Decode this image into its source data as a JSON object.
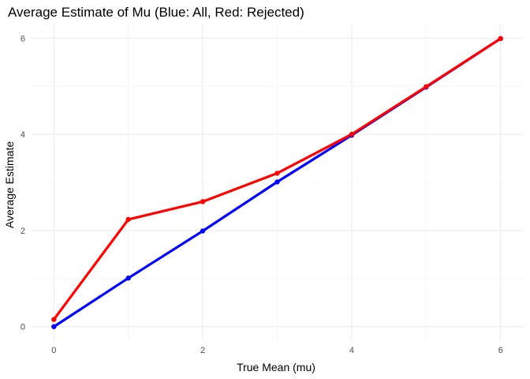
{
  "chart_data": {
    "type": "line",
    "title": "Average Estimate of Mu (Blue: All, Red: Rejected)",
    "xlabel": "True Mean (mu)",
    "ylabel": "Average Estimate",
    "x": [
      0,
      1,
      2,
      3,
      4,
      5,
      6
    ],
    "xlim": [
      -0.3,
      6.3
    ],
    "ylim": [
      -0.3,
      6.3
    ],
    "x_ticks": [
      0,
      2,
      4,
      6
    ],
    "y_ticks": [
      0,
      2,
      4,
      6
    ],
    "grid": true,
    "series": [
      {
        "color": "#0000ff",
        "values": [
          0.0,
          1.01,
          1.99,
          3.01,
          3.98,
          4.98,
          5.99
        ]
      },
      {
        "color": "#ff0000",
        "values": [
          0.15,
          2.23,
          2.6,
          3.19,
          4.0,
          4.99,
          5.99
        ]
      }
    ]
  }
}
